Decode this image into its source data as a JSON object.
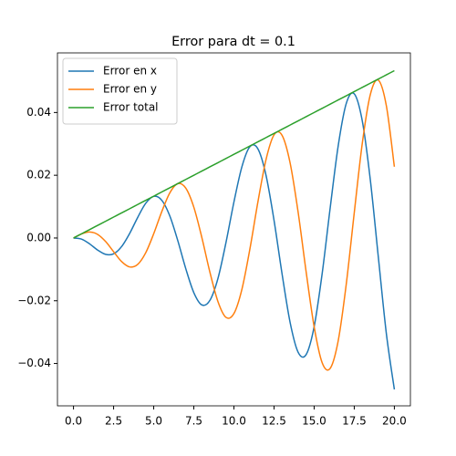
{
  "chart_data": {
    "type": "line",
    "title": "Error para dt = 0.1",
    "x": [
      0,
      0.5,
      1,
      1.5,
      2,
      2.5,
      3,
      3.5,
      4,
      4.5,
      5,
      5.5,
      6,
      6.5,
      7,
      7.5,
      8,
      8.5,
      9,
      9.5,
      10,
      10.5,
      11,
      11.5,
      12,
      12.5,
      13,
      13.5,
      14,
      14.5,
      15,
      15.5,
      16,
      16.5,
      17,
      17.5,
      18,
      18.5,
      19,
      19.5,
      20
    ],
    "series": [
      {
        "name": "Error en x",
        "color": "#1f77b4",
        "values": [
          0,
          -0.00035,
          -0.00186,
          -0.00383,
          -0.00522,
          -0.00505,
          -0.00272,
          0.00145,
          0.00654,
          0.01104,
          0.01327,
          0.01204,
          0.00707,
          -0.00083,
          -0.0098,
          -0.01742,
          -0.02133,
          -0.0199,
          -0.01296,
          -0.00155,
          0.01147,
          0.02276,
          0.02913,
          0.02837,
          0.02,
          0.00563,
          -0.01144,
          -0.02686,
          -0.0364,
          -0.03716,
          -0.02828,
          -0.01133,
          0.0096,
          0.02939,
          0.04284,
          0.04597,
          0.03734,
          0.0186,
          -0.00603,
          -0.03042,
          -0.04827
        ]
      },
      {
        "name": "Error en y",
        "color": "#ff7f0e",
        "values": [
          0,
          0.00129,
          0.00191,
          0.00116,
          -0.00111,
          -0.00436,
          -0.00752,
          -0.00922,
          -0.00843,
          -0.00472,
          0.00136,
          0.00837,
          0.01435,
          0.01732,
          0.01589,
          0.00982,
          0.00015,
          -0.01086,
          -0.02021,
          -0.02528,
          -0.02408,
          -0.0163,
          -0.00337,
          0.01165,
          0.02499,
          0.03287,
          0.03273,
          0.02398,
          0.00829,
          -0.01075,
          -0.02828,
          -0.03976,
          -0.04156,
          -0.03274,
          -0.01478,
          0.00803,
          0.03014,
          0.04568,
          0.05031,
          0.04217,
          0.02272
        ]
      },
      {
        "name": "Error total",
        "color": "#2ca02c",
        "values": [
          0,
          0.00133,
          0.00267,
          0.004,
          0.00533,
          0.00667,
          0.008,
          0.00933,
          0.01067,
          0.012,
          0.01333,
          0.01467,
          0.016,
          0.01733,
          0.01867,
          0.02,
          0.02133,
          0.02267,
          0.024,
          0.02533,
          0.02667,
          0.028,
          0.02933,
          0.03067,
          0.032,
          0.03333,
          0.03467,
          0.036,
          0.03733,
          0.03867,
          0.04,
          0.04133,
          0.04267,
          0.044,
          0.04533,
          0.04667,
          0.048,
          0.04933,
          0.05067,
          0.052,
          0.05333
        ]
      }
    ],
    "xlim": [
      -1,
      21
    ],
    "ylim": [
      -0.0535,
      0.059
    ],
    "xticks": [
      {
        "value": 0,
        "label": "0.0"
      },
      {
        "value": 2.5,
        "label": "2.5"
      },
      {
        "value": 5,
        "label": "5.0"
      },
      {
        "value": 7.5,
        "label": "7.5"
      },
      {
        "value": 10,
        "label": "10.0"
      },
      {
        "value": 12.5,
        "label": "12.5"
      },
      {
        "value": 15,
        "label": "15.0"
      },
      {
        "value": 17.5,
        "label": "17.5"
      },
      {
        "value": 20,
        "label": "20.0"
      }
    ],
    "yticks": [
      {
        "value": -0.04,
        "label": "−0.04"
      },
      {
        "value": -0.02,
        "label": "−0.02"
      },
      {
        "value": 0,
        "label": "0.00"
      },
      {
        "value": 0.02,
        "label": "0.02"
      },
      {
        "value": 0.04,
        "label": "0.04"
      }
    ],
    "legend": "upper left",
    "grid": false
  }
}
